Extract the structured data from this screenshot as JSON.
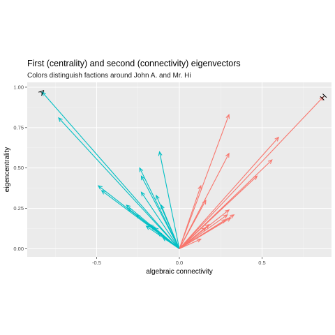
{
  "chart_data": {
    "type": "vector-field",
    "title": "First (centrality) and second (connectivity) eigenvectors",
    "subtitle": "Colors distinguish factions around John A. and Mr. Hi",
    "xlabel": "algebraic connectivity",
    "ylabel": "eigencentrality",
    "xlim": [
      -0.92,
      0.92
    ],
    "ylim": [
      -0.05,
      1.03
    ],
    "x_ticks": [
      -0.5,
      0.0,
      0.5
    ],
    "x_tick_labels": [
      "-0.5",
      "0.0",
      "0.5"
    ],
    "y_ticks": [
      0.0,
      0.25,
      0.5,
      0.75,
      1.0
    ],
    "y_tick_labels": [
      "0.00",
      "0.25",
      "0.50",
      "0.75",
      "1.00"
    ],
    "grid": true,
    "origin": [
      0,
      0
    ],
    "colors": {
      "john_a_faction": "#00BFC4",
      "mr_hi_faction": "#F8766D",
      "panel_background": "#EBEBEB",
      "grid_line": "#FFFFFF"
    },
    "point_labels": [
      {
        "text": "A",
        "x": -0.83,
        "y": 0.97
      },
      {
        "text": "H",
        "x": 0.87,
        "y": 0.94
      }
    ],
    "series": [
      {
        "faction": "john_a_faction",
        "vectors": [
          {
            "x": -0.83,
            "y": 0.97
          },
          {
            "x": -0.73,
            "y": 0.81
          },
          {
            "x": -0.49,
            "y": 0.39
          },
          {
            "x": -0.47,
            "y": 0.36
          },
          {
            "x": -0.32,
            "y": 0.27
          },
          {
            "x": -0.31,
            "y": 0.25
          },
          {
            "x": -0.26,
            "y": 0.21
          },
          {
            "x": -0.24,
            "y": 0.5
          },
          {
            "x": -0.23,
            "y": 0.45
          },
          {
            "x": -0.23,
            "y": 0.35
          },
          {
            "x": -0.2,
            "y": 0.14
          },
          {
            "x": -0.18,
            "y": 0.15
          },
          {
            "x": -0.17,
            "y": 0.14
          },
          {
            "x": -0.15,
            "y": 0.13
          },
          {
            "x": -0.14,
            "y": 0.33
          },
          {
            "x": -0.13,
            "y": 0.1
          },
          {
            "x": -0.12,
            "y": 0.6
          },
          {
            "x": -0.11,
            "y": 0.27
          },
          {
            "x": -0.1,
            "y": 0.07
          }
        ]
      },
      {
        "faction": "mr_hi_faction",
        "vectors": [
          {
            "x": 0.87,
            "y": 0.94
          },
          {
            "x": 0.3,
            "y": 0.83
          },
          {
            "x": 0.6,
            "y": 0.69
          },
          {
            "x": 0.3,
            "y": 0.59
          },
          {
            "x": 0.56,
            "y": 0.55
          },
          {
            "x": 0.47,
            "y": 0.45
          },
          {
            "x": 0.13,
            "y": 0.39
          },
          {
            "x": 0.16,
            "y": 0.3
          },
          {
            "x": 0.3,
            "y": 0.24
          },
          {
            "x": 0.29,
            "y": 0.21
          },
          {
            "x": 0.33,
            "y": 0.21
          },
          {
            "x": 0.31,
            "y": 0.19
          },
          {
            "x": 0.28,
            "y": 0.18
          },
          {
            "x": 0.18,
            "y": 0.15
          },
          {
            "x": 0.16,
            "y": 0.13
          },
          {
            "x": 0.13,
            "y": 0.06
          }
        ]
      }
    ]
  }
}
